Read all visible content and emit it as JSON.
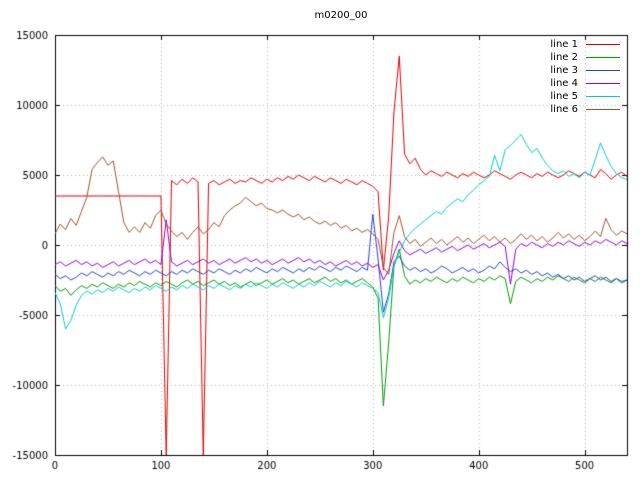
{
  "title": "m0200_00",
  "chart_data": {
    "type": "line",
    "title": "m0200_00",
    "xlabel": "",
    "ylabel": "",
    "xlim": [
      0,
      540
    ],
    "ylim": [
      -15000,
      15000
    ],
    "xticks": [
      0,
      100,
      200,
      300,
      400,
      500
    ],
    "yticks": [
      -15000,
      -10000,
      -5000,
      0,
      5000,
      10000,
      15000
    ],
    "grid": true,
    "legend_position": "top-right",
    "x_start": 0,
    "x_step": 5,
    "series": [
      {
        "name": "line 1",
        "color": "#dd0000",
        "values": [
          3500,
          3500,
          3500,
          3500,
          3500,
          3500,
          3500,
          3500,
          3500,
          3500,
          3500,
          3500,
          3500,
          3500,
          3500,
          3500,
          3500,
          3500,
          3500,
          3500,
          3500,
          -15000,
          4600,
          4300,
          4700,
          4400,
          4800,
          4500,
          -15000,
          4400,
          4600,
          4300,
          4500,
          4700,
          4400,
          4600,
          4500,
          4800,
          4600,
          4400,
          4700,
          4500,
          4800,
          4600,
          4900,
          4700,
          5000,
          4800,
          4600,
          4900,
          4700,
          4500,
          4800,
          4600,
          4400,
          4700,
          4500,
          4300,
          4600,
          4400,
          4200,
          3800,
          -1800,
          2000,
          9500,
          13500,
          6500,
          5800,
          6200,
          5400,
          5000,
          5300,
          5100,
          4900,
          5200,
          5000,
          4800,
          5100,
          4900,
          5200,
          5000,
          4800,
          5000,
          5300,
          5100,
          4900,
          4700,
          5000,
          5200,
          5000,
          4800,
          5100,
          4900,
          5200,
          5000,
          4800,
          5000,
          5300,
          5100,
          4900,
          5200,
          5000,
          4800,
          5400,
          5100,
          4700,
          5000,
          5200,
          4900
        ]
      },
      {
        "name": "line 2",
        "color": "#009900",
        "values": [
          -2900,
          -3300,
          -3100,
          -3600,
          -3200,
          -2900,
          -3100,
          -2800,
          -3000,
          -2700,
          -2900,
          -3100,
          -2800,
          -3000,
          -2700,
          -2900,
          -2600,
          -2800,
          -3000,
          -2700,
          -2900,
          -2600,
          -2800,
          -3000,
          -2700,
          -2500,
          -2800,
          -2600,
          -2900,
          -2700,
          -2500,
          -2800,
          -2600,
          -2900,
          -2700,
          -3000,
          -2800,
          -2600,
          -2900,
          -2700,
          -2500,
          -2800,
          -2600,
          -2400,
          -2700,
          -2500,
          -2800,
          -2600,
          -2400,
          -2700,
          -2500,
          -2300,
          -2600,
          -2400,
          -2700,
          -2500,
          -2800,
          -2600,
          -2400,
          -2700,
          -3000,
          -3800,
          -11500,
          -7000,
          -1500,
          -300,
          -2200,
          -2800,
          -2500,
          -2700,
          -2400,
          -2600,
          -2300,
          -2500,
          -2700,
          -2400,
          -2600,
          -2300,
          -2500,
          -2700,
          -2400,
          -2600,
          -2300,
          -2500,
          -2200,
          -2400,
          -4200,
          -2600,
          -2300,
          -2500,
          -2700,
          -2400,
          -2600,
          -2300,
          -2500,
          -2200,
          -2400,
          -2600,
          -2300,
          -2500,
          -2700,
          -2400,
          -2600,
          -2300,
          -2500,
          -2700,
          -2400,
          -2600,
          -2500
        ]
      },
      {
        "name": "line 3",
        "color": "#2244cc",
        "values": [
          -2100,
          -2400,
          -2200,
          -2500,
          -2300,
          -2000,
          -2200,
          -1900,
          -2100,
          -2300,
          -2000,
          -2200,
          -1900,
          -2100,
          -1800,
          -2000,
          -2200,
          -1900,
          -2100,
          -1800,
          -2000,
          -2200,
          -1900,
          -2100,
          -1800,
          -2000,
          -1700,
          -1900,
          -2100,
          -1800,
          -2000,
          -1700,
          -1900,
          -2100,
          -1800,
          -2000,
          -1700,
          -1900,
          -1600,
          -1800,
          -2000,
          -1700,
          -1900,
          -1600,
          -1800,
          -2000,
          -1700,
          -1900,
          -1600,
          -1800,
          -1500,
          -1700,
          -1900,
          -1600,
          -1800,
          -1500,
          -1700,
          -1900,
          -1600,
          -1800,
          2200,
          -1000,
          -4800,
          -3500,
          -1200,
          -800,
          -1500,
          -1800,
          -1600,
          -1900,
          -1700,
          -2000,
          -1800,
          -1500,
          -1700,
          -2000,
          -1800,
          -1600,
          -1900,
          -1700,
          -2000,
          -1800,
          -1500,
          -1700,
          -1200,
          -1600,
          -1900,
          -1700,
          -2000,
          -1800,
          -2100,
          -1900,
          -2200,
          -2000,
          -2300,
          -2100,
          -2400,
          -2200,
          -2500,
          -2300,
          -2600,
          -2400,
          -2200,
          -2500,
          -2300,
          -2600,
          -2400,
          -2700,
          -2500
        ]
      },
      {
        "name": "line 4",
        "color": "#9400d3",
        "values": [
          -1400,
          -1200,
          -1500,
          -1300,
          -1100,
          -1400,
          -1200,
          -1500,
          -1300,
          -1600,
          -1400,
          -1200,
          -1500,
          -1300,
          -1100,
          -1400,
          -1200,
          -1000,
          -1300,
          -1100,
          -1400,
          1800,
          -1200,
          -1500,
          -1300,
          -1100,
          -1400,
          -1200,
          -1000,
          -1300,
          -1100,
          -1400,
          -1200,
          -1000,
          -1300,
          -1100,
          -900,
          -1200,
          -1000,
          -1300,
          -1100,
          -1400,
          -1200,
          -1000,
          -1300,
          -1100,
          -900,
          -1200,
          -1000,
          -1300,
          -1100,
          -1400,
          -1200,
          -1500,
          -1300,
          -1100,
          -1400,
          -1200,
          -1500,
          -1300,
          -1600,
          -1400,
          -2500,
          -1800,
          -600,
          300,
          -400,
          -700,
          -500,
          -300,
          -600,
          -400,
          -200,
          -500,
          -300,
          -100,
          -400,
          -200,
          0,
          -300,
          -100,
          100,
          -200,
          0,
          200,
          -100,
          -2800,
          -300,
          100,
          -100,
          200,
          0,
          -200,
          100,
          -100,
          200,
          0,
          300,
          100,
          -100,
          200,
          0,
          300,
          100,
          400,
          200,
          0,
          300,
          100
        ]
      },
      {
        "name": "line 5",
        "color": "#00cccc",
        "values": [
          -3400,
          -4200,
          -6000,
          -5400,
          -4300,
          -3600,
          -3300,
          -3500,
          -3200,
          -3400,
          -3100,
          -3300,
          -3000,
          -3200,
          -3400,
          -3100,
          -3300,
          -3000,
          -3200,
          -2900,
          -3100,
          -3300,
          -3000,
          -3200,
          -2900,
          -3100,
          -2800,
          -3000,
          -3200,
          -2900,
          -3100,
          -2800,
          -3000,
          -3200,
          -2900,
          -3100,
          -2800,
          -3000,
          -2700,
          -2900,
          -3100,
          -2800,
          -3000,
          -2700,
          -2900,
          -3100,
          -2800,
          -3000,
          -2700,
          -2900,
          -2600,
          -2800,
          -3000,
          -2700,
          -2900,
          -2600,
          -2800,
          -3000,
          -2700,
          -2900,
          -3100,
          -3400,
          -5200,
          -3800,
          -1500,
          -500,
          300,
          800,
          1200,
          1500,
          1800,
          2100,
          2400,
          2200,
          2700,
          3000,
          3300,
          3100,
          3600,
          3900,
          4300,
          4600,
          4900,
          6400,
          5300,
          6800,
          7100,
          7500,
          7900,
          7200,
          6600,
          6900,
          6200,
          5700,
          5300,
          5100,
          5300,
          4900,
          5100,
          4800,
          5200,
          5000,
          6100,
          7300,
          6400,
          5600,
          5100,
          4800,
          4700
        ]
      },
      {
        "name": "line 6",
        "color": "#a0522d",
        "values": [
          800,
          1500,
          1100,
          1900,
          1400,
          2400,
          3400,
          5400,
          5900,
          6300,
          5700,
          6000,
          3800,
          1600,
          900,
          1300,
          900,
          1600,
          1200,
          2100,
          2500,
          1500,
          1000,
          600,
          900,
          400,
          900,
          1300,
          800,
          1100,
          1600,
          1300,
          2100,
          2500,
          2800,
          3000,
          3400,
          3100,
          2800,
          3000,
          2600,
          2500,
          2300,
          2500,
          2200,
          2000,
          2200,
          1800,
          2000,
          1700,
          1500,
          1700,
          1400,
          1600,
          1200,
          1400,
          1000,
          1200,
          900,
          1100,
          800,
          400,
          -1600,
          -2100,
          900,
          2100,
          600,
          100,
          400,
          -100,
          200,
          500,
          100,
          400,
          0,
          300,
          600,
          200,
          500,
          100,
          400,
          700,
          300,
          600,
          200,
          500,
          100,
          400,
          800,
          400,
          700,
          300,
          600,
          200,
          500,
          900,
          500,
          800,
          400,
          700,
          300,
          600,
          1000,
          600,
          1900,
          1100,
          700,
          1000,
          800
        ]
      }
    ]
  }
}
